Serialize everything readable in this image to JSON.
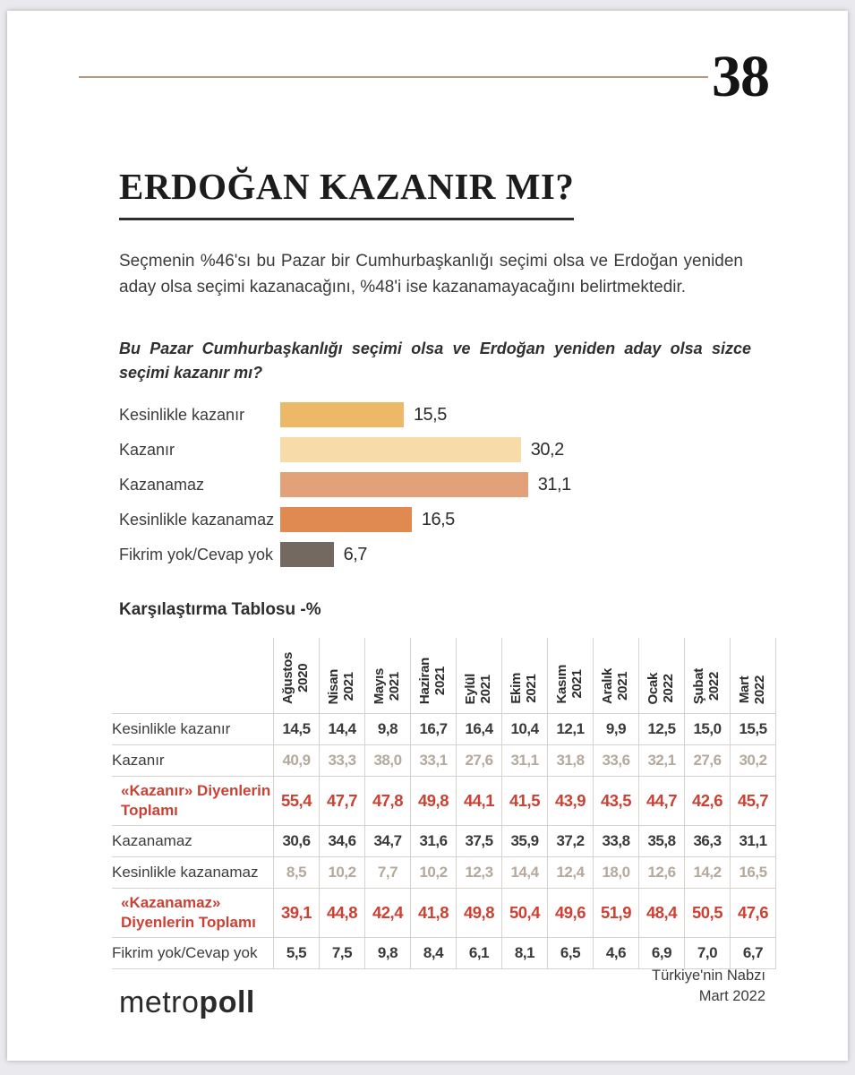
{
  "page": {
    "number": "38",
    "title": "ERDOĞAN KAZANIR MI?",
    "summary": "Seçmenin %46'sı bu Pazar bir Cumhurbaşkanlığı seçimi olsa ve Erdoğan yeniden aday olsa seçimi kazanacağını, %48'i ise kazanamayacağını belirtmektedir.",
    "question": "Bu Pazar Cumhurbaşkanlığı seçimi olsa ve Erdoğan yeniden aday olsa sizce seçimi kazanır mı?"
  },
  "colors": {
    "accent_rule": "#b49a80",
    "red_text": "#cb4134",
    "muted_text": "#b5a99c",
    "dark_text": "#3a3a3a",
    "grid_line": "#d6d3cf"
  },
  "chart_data": [
    {
      "type": "bar",
      "orientation": "horizontal",
      "categories": [
        "Kesinlikle kazanır",
        "Kazanır",
        "Kazanamaz",
        "Kesinlikle kazanamaz",
        "Fikrim yok/Cevap yok"
      ],
      "values": [
        15.5,
        30.2,
        31.1,
        16.5,
        6.7
      ],
      "value_labels": [
        "15,5",
        "30,2",
        "31,1",
        "16,5",
        "6,7"
      ],
      "bar_colors": [
        "#edb867",
        "#f7dcaa",
        "#e2a178",
        "#e08a52",
        "#746961"
      ],
      "title": "Bu Pazar Cumhurbaşkanlığı seçimi olsa ve Erdoğan yeniden aday olsa sizce seçimi kazanır mı?",
      "xlabel": "",
      "ylabel": "",
      "xlim": [
        0,
        35
      ],
      "grid": false,
      "legend": "none",
      "unit": "%"
    },
    {
      "type": "table",
      "title": "Karşılaştırma Tablosu -%",
      "columns": [
        {
          "month": "Ağustos",
          "year": "2020"
        },
        {
          "month": "Nisan",
          "year": "2021"
        },
        {
          "month": "Mayıs",
          "year": "2021"
        },
        {
          "month": "Haziran",
          "year": "2021"
        },
        {
          "month": "Eylül",
          "year": "2021"
        },
        {
          "month": "Ekim",
          "year": "2021"
        },
        {
          "month": "Kasım",
          "year": "2021"
        },
        {
          "month": "Aralık",
          "year": "2021"
        },
        {
          "month": "Ocak",
          "year": "2022"
        },
        {
          "month": "Şubat",
          "year": "2022"
        },
        {
          "month": "Mart",
          "year": "2022"
        }
      ],
      "rows": [
        {
          "label": "Kesinlikle kazanır",
          "style": "dark",
          "cells": [
            "14,5",
            "14,4",
            "9,8",
            "16,7",
            "16,4",
            "10,4",
            "12,1",
            "9,9",
            "12,5",
            "15,0",
            "15,5"
          ]
        },
        {
          "label": "Kazanır",
          "style": "muted",
          "cells": [
            "40,9",
            "33,3",
            "38,0",
            "33,1",
            "27,6",
            "31,1",
            "31,8",
            "33,6",
            "32,1",
            "27,6",
            "30,2"
          ]
        },
        {
          "label": "«Kazanır» Diyenlerin Toplamı",
          "style": "red",
          "cells": [
            "55,4",
            "47,7",
            "47,8",
            "49,8",
            "44,1",
            "41,5",
            "43,9",
            "43,5",
            "44,7",
            "42,6",
            "45,7"
          ]
        },
        {
          "label": "Kazanamaz",
          "style": "dark",
          "cells": [
            "30,6",
            "34,6",
            "34,7",
            "31,6",
            "37,5",
            "35,9",
            "37,2",
            "33,8",
            "35,8",
            "36,3",
            "31,1"
          ]
        },
        {
          "label": "Kesinlikle kazanamaz",
          "style": "muted",
          "cells": [
            "8,5",
            "10,2",
            "7,7",
            "10,2",
            "12,3",
            "14,4",
            "12,4",
            "18,0",
            "12,6",
            "14,2",
            "16,5"
          ]
        },
        {
          "label": "«Kazanamaz» Diyenlerin Toplamı",
          "style": "red",
          "cells": [
            "39,1",
            "44,8",
            "42,4",
            "41,8",
            "49,8",
            "50,4",
            "49,6",
            "51,9",
            "48,4",
            "50,5",
            "47,6"
          ]
        },
        {
          "label": "Fikrim yok/Cevap yok",
          "style": "dark",
          "cells": [
            "5,5",
            "7,5",
            "9,8",
            "8,4",
            "6,1",
            "8,1",
            "6,5",
            "4,6",
            "6,9",
            "7,0",
            "6,7"
          ]
        }
      ]
    }
  ],
  "table_title": "Karşılaştırma Tablosu -%",
  "footer": {
    "brand_light": "metro",
    "brand_bold": "poll",
    "report_title": "Türkiye'nin Nabzı",
    "report_date": "Mart 2022"
  }
}
